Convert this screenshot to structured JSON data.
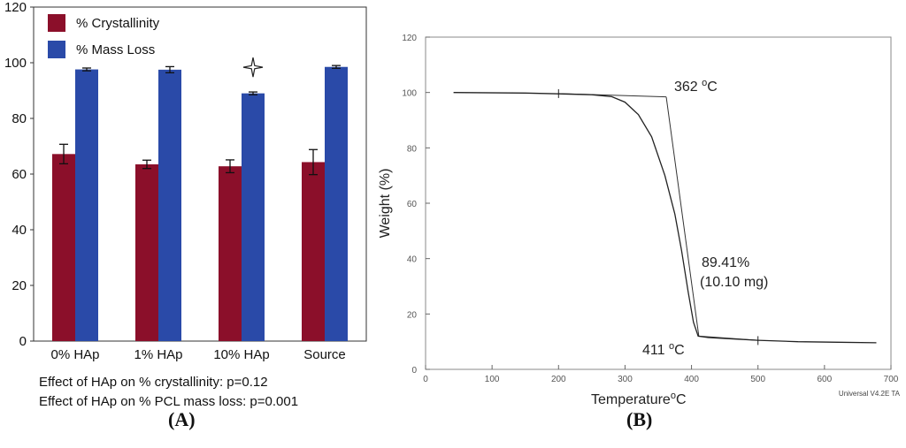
{
  "chart_data": [
    {
      "panel": "(A)",
      "type": "bar",
      "title": "",
      "xlabel": "",
      "ylabel": "",
      "categories": [
        "0% HAp",
        "1% HAp",
        "10% HAp",
        "Source"
      ],
      "series": [
        {
          "name": "% Crystallinity",
          "color": "#8b0f2a",
          "values": [
            67.2,
            63.5,
            62.8,
            64.3
          ],
          "errors": [
            3.5,
            1.5,
            2.3,
            4.5
          ]
        },
        {
          "name": "% Mass Loss",
          "color": "#2a4aa8",
          "values": [
            97.6,
            97.5,
            89.0,
            98.5
          ],
          "errors": [
            0.5,
            1.1,
            0.5,
            0.5
          ]
        }
      ],
      "ylim": [
        0,
        120
      ],
      "yticks": [
        0,
        20,
        40,
        60,
        80,
        100,
        120
      ],
      "significance_marker": {
        "category": "10% HAp",
        "series": "% Mass Loss",
        "symbol": "star"
      },
      "legend_position": "top-left",
      "annotations": [
        "Effect of HAp on % crystallinity: p=0.12",
        "Effect of HAp on % PCL mass loss: p=0.001"
      ]
    },
    {
      "panel": "(B)",
      "type": "line",
      "xlabel": "Temperature",
      "xlabel_unit": "oC",
      "ylabel": "Weight (%)",
      "xlim": [
        0,
        700
      ],
      "ylim": [
        0,
        120
      ],
      "xticks": [
        0,
        100,
        200,
        300,
        400,
        500,
        600,
        700
      ],
      "yticks": [
        0,
        20,
        40,
        60,
        80,
        100,
        120
      ],
      "series": [
        {
          "name": "TGA curve",
          "x": [
            42,
            150,
            200,
            250,
            280,
            300,
            320,
            340,
            360,
            375,
            385,
            395,
            403,
            410,
            425,
            460,
            500,
            560,
            620,
            678
          ],
          "y": [
            100,
            99.8,
            99.5,
            99.2,
            98.5,
            96.5,
            92,
            84,
            70,
            56,
            43,
            28,
            17,
            12,
            11.5,
            11,
            10.5,
            10,
            9.8,
            9.6
          ]
        }
      ],
      "tangent_lines": [
        {
          "x": [
            200,
            362
          ],
          "y": [
            99.6,
            98.4
          ]
        },
        {
          "x": [
            362,
            411
          ],
          "y": [
            98.4,
            12
          ]
        },
        {
          "x": [
            411,
            500
          ],
          "y": [
            12,
            10.5
          ]
        }
      ],
      "markers": [
        {
          "x": 200,
          "y": 99.6
        },
        {
          "x": 500,
          "y": 10.4
        }
      ],
      "onset_label": {
        "value": "362",
        "unit": "oC"
      },
      "end_label": {
        "value": "411",
        "unit": "oC"
      },
      "mass_loss_label": {
        "percent": "89.41%",
        "mass": "(10.10 mg)"
      },
      "footer": "Universal V4.2E TA"
    }
  ]
}
